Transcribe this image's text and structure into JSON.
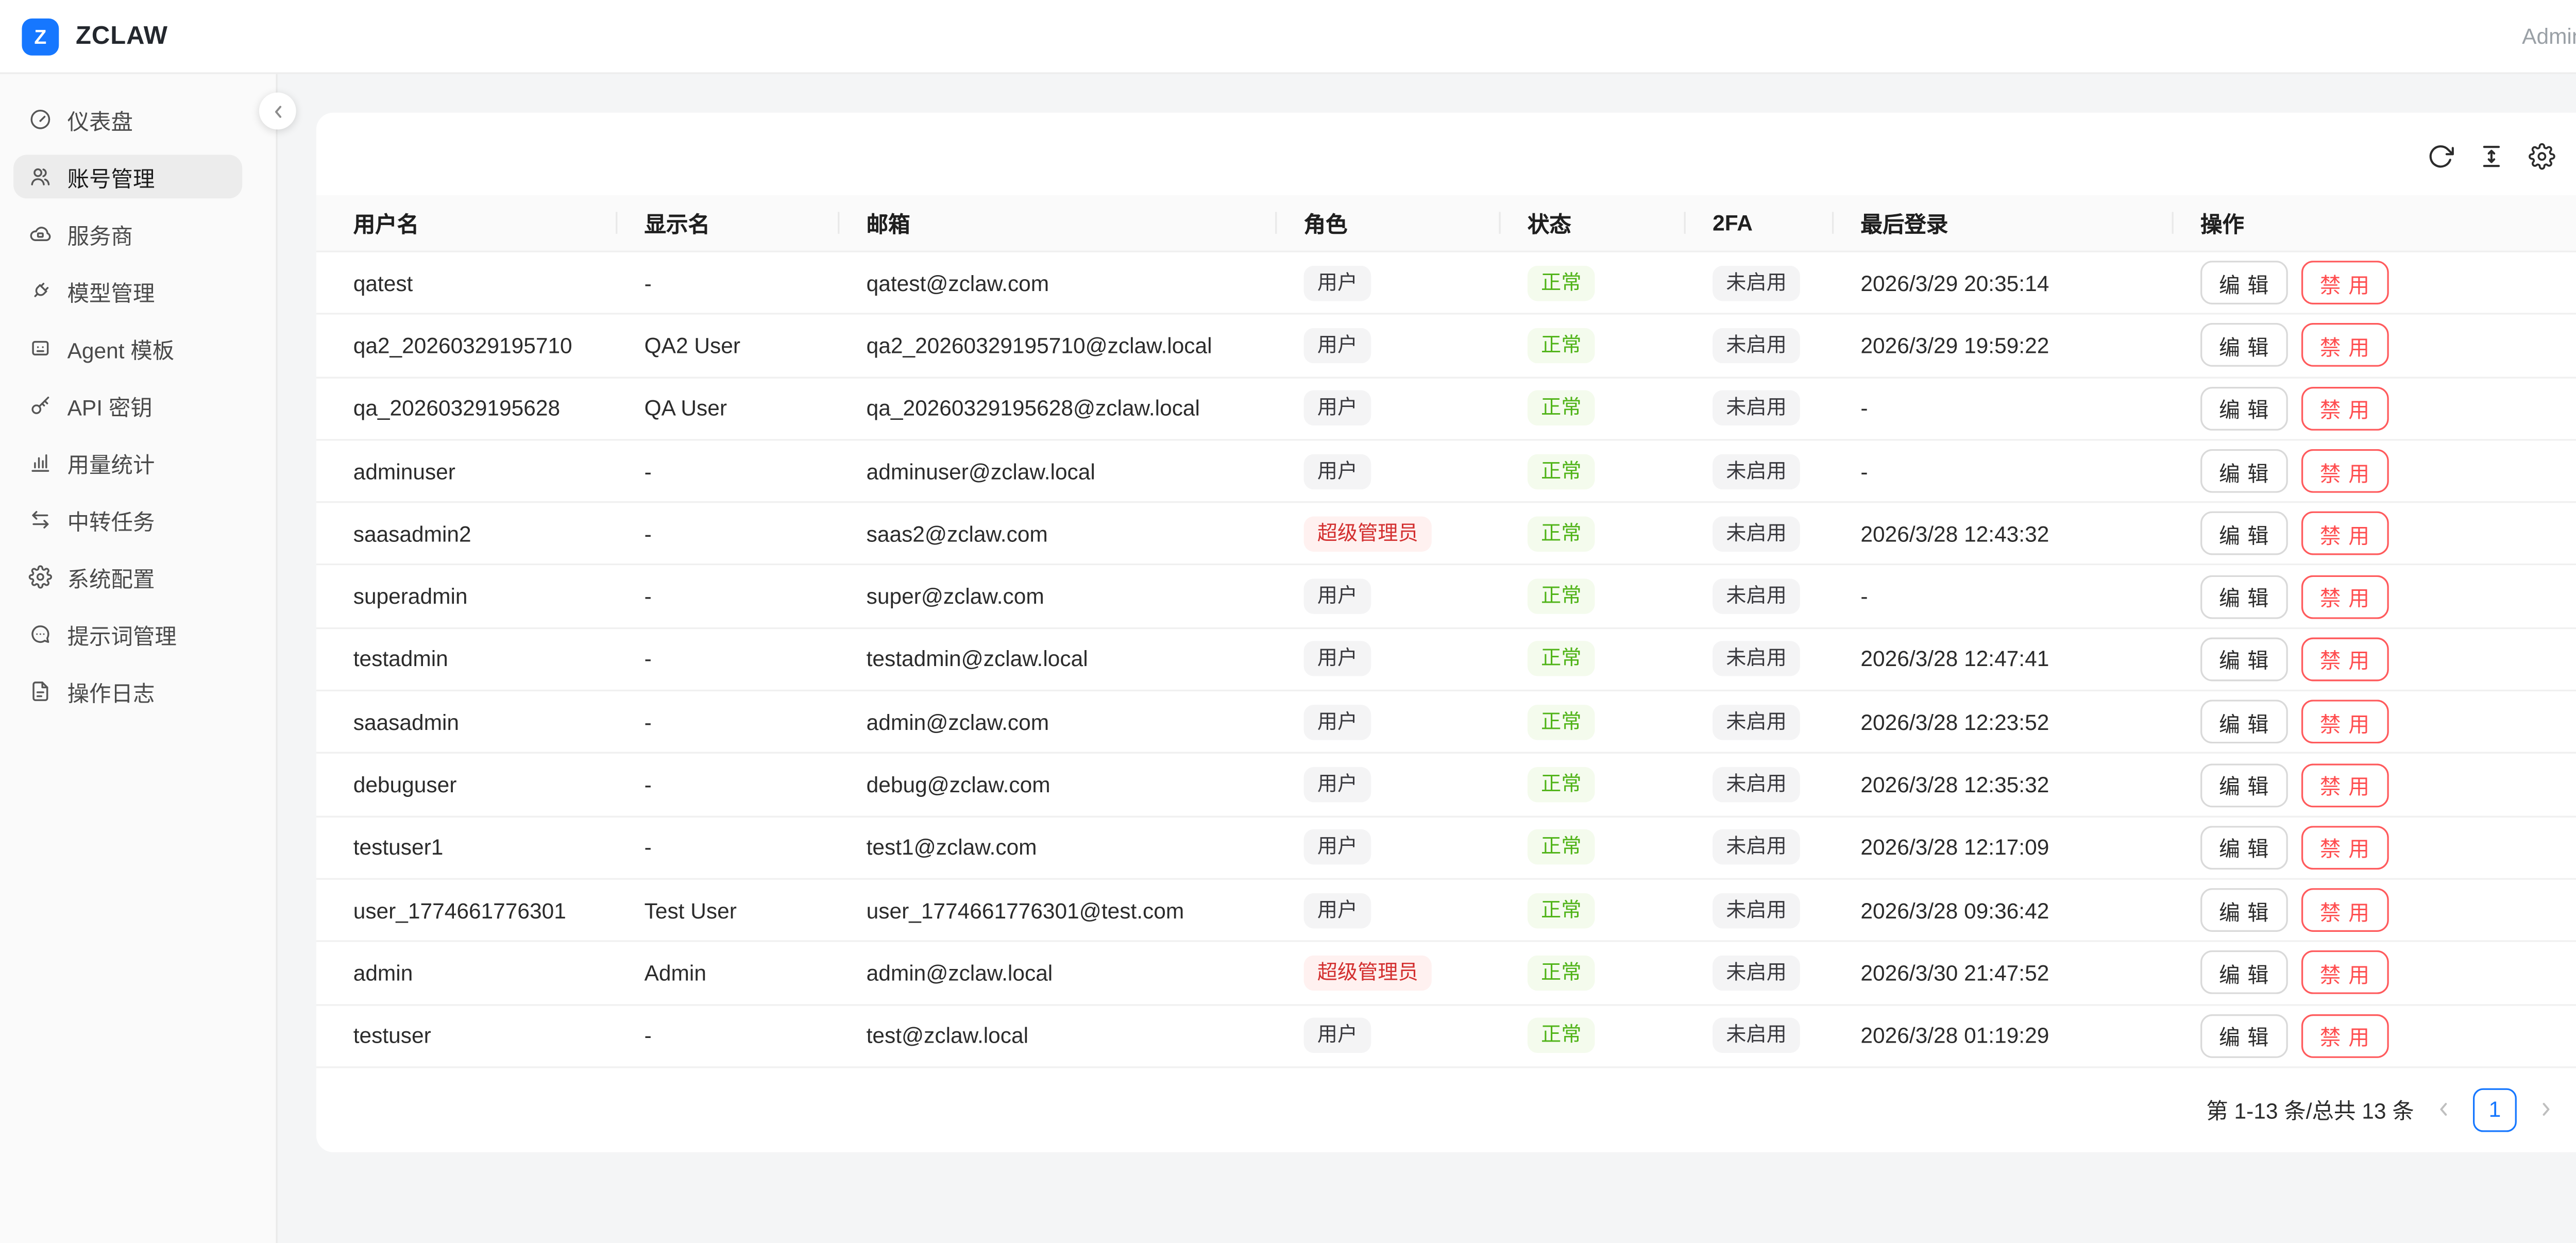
{
  "brand": {
    "logo_letter": "Z",
    "name": "ZCLAW"
  },
  "header": {
    "user_label": "Admin"
  },
  "sidebar": {
    "items": [
      {
        "icon": "dashboard-icon",
        "label": "仪表盘",
        "state": "normal"
      },
      {
        "icon": "users-icon",
        "label": "账号管理",
        "state": "active"
      },
      {
        "icon": "cloud-icon",
        "label": "服务商",
        "state": "normal"
      },
      {
        "icon": "plug-icon",
        "label": "模型管理",
        "state": "normal"
      },
      {
        "icon": "robot-icon",
        "label": "Agent 模板",
        "state": "normal"
      },
      {
        "icon": "key-icon",
        "label": "API 密钥",
        "state": "normal"
      },
      {
        "icon": "chart-icon",
        "label": "用量统计",
        "state": "normal"
      },
      {
        "icon": "swap-icon",
        "label": "中转任务",
        "state": "normal"
      },
      {
        "icon": "gear-icon",
        "label": "系统配置",
        "state": "normal"
      },
      {
        "icon": "comment-icon",
        "label": "提示词管理",
        "state": "normal"
      },
      {
        "icon": "file-icon",
        "label": "操作日志",
        "state": "normal"
      }
    ]
  },
  "table": {
    "columns": [
      "用户名",
      "显示名",
      "邮箱",
      "角色",
      "状态",
      "2FA",
      "最后登录",
      "操作"
    ],
    "actions": {
      "edit": "编 辑",
      "disable": "禁 用"
    },
    "rows": [
      {
        "username": "qatest",
        "display_name": "-",
        "email": "qatest@zclaw.com",
        "role": "用户",
        "role_type": "default",
        "status": "正常",
        "twofa": "未启用",
        "last_login": "2026/3/29 20:35:14"
      },
      {
        "username": "qa2_20260329195710",
        "display_name": "QA2 User",
        "email": "qa2_20260329195710@zclaw.local",
        "role": "用户",
        "role_type": "default",
        "status": "正常",
        "twofa": "未启用",
        "last_login": "2026/3/29 19:59:22"
      },
      {
        "username": "qa_20260329195628",
        "display_name": "QA User",
        "email": "qa_20260329195628@zclaw.local",
        "role": "用户",
        "role_type": "default",
        "status": "正常",
        "twofa": "未启用",
        "last_login": "-"
      },
      {
        "username": "adminuser",
        "display_name": "-",
        "email": "adminuser@zclaw.local",
        "role": "用户",
        "role_type": "default",
        "status": "正常",
        "twofa": "未启用",
        "last_login": "-"
      },
      {
        "username": "saasadmin2",
        "display_name": "-",
        "email": "saas2@zclaw.com",
        "role": "超级管理员",
        "role_type": "danger",
        "status": "正常",
        "twofa": "未启用",
        "last_login": "2026/3/28 12:43:32"
      },
      {
        "username": "superadmin",
        "display_name": "-",
        "email": "super@zclaw.com",
        "role": "用户",
        "role_type": "default",
        "status": "正常",
        "twofa": "未启用",
        "last_login": "-"
      },
      {
        "username": "testadmin",
        "display_name": "-",
        "email": "testadmin@zclaw.local",
        "role": "用户",
        "role_type": "default",
        "status": "正常",
        "twofa": "未启用",
        "last_login": "2026/3/28 12:47:41"
      },
      {
        "username": "saasadmin",
        "display_name": "-",
        "email": "admin@zclaw.com",
        "role": "用户",
        "role_type": "default",
        "status": "正常",
        "twofa": "未启用",
        "last_login": "2026/3/28 12:23:52"
      },
      {
        "username": "debuguser",
        "display_name": "-",
        "email": "debug@zclaw.com",
        "role": "用户",
        "role_type": "default",
        "status": "正常",
        "twofa": "未启用",
        "last_login": "2026/3/28 12:35:32"
      },
      {
        "username": "testuser1",
        "display_name": "-",
        "email": "test1@zclaw.com",
        "role": "用户",
        "role_type": "default",
        "status": "正常",
        "twofa": "未启用",
        "last_login": "2026/3/28 12:17:09"
      },
      {
        "username": "user_1774661776301",
        "display_name": "Test User",
        "email": "user_1774661776301@test.com",
        "role": "用户",
        "role_type": "default",
        "status": "正常",
        "twofa": "未启用",
        "last_login": "2026/3/28 09:36:42"
      },
      {
        "username": "admin",
        "display_name": "Admin",
        "email": "admin@zclaw.local",
        "role": "超级管理员",
        "role_type": "danger",
        "status": "正常",
        "twofa": "未启用",
        "last_login": "2026/3/30 21:47:52"
      },
      {
        "username": "testuser",
        "display_name": "-",
        "email": "test@zclaw.local",
        "role": "用户",
        "role_type": "default",
        "status": "正常",
        "twofa": "未启用",
        "last_login": "2026/3/28 01:19:29"
      }
    ]
  },
  "pagination": {
    "summary": "第 1-13 条/总共 13 条",
    "page": "1"
  },
  "colors": {
    "accent_blue": "#1677ff",
    "success_green": "#52c41a",
    "danger_red": "#ff4d4f",
    "role_red": "#cf1322",
    "card_bg": "#ffffff",
    "content_bg": "#f4f5f6"
  }
}
